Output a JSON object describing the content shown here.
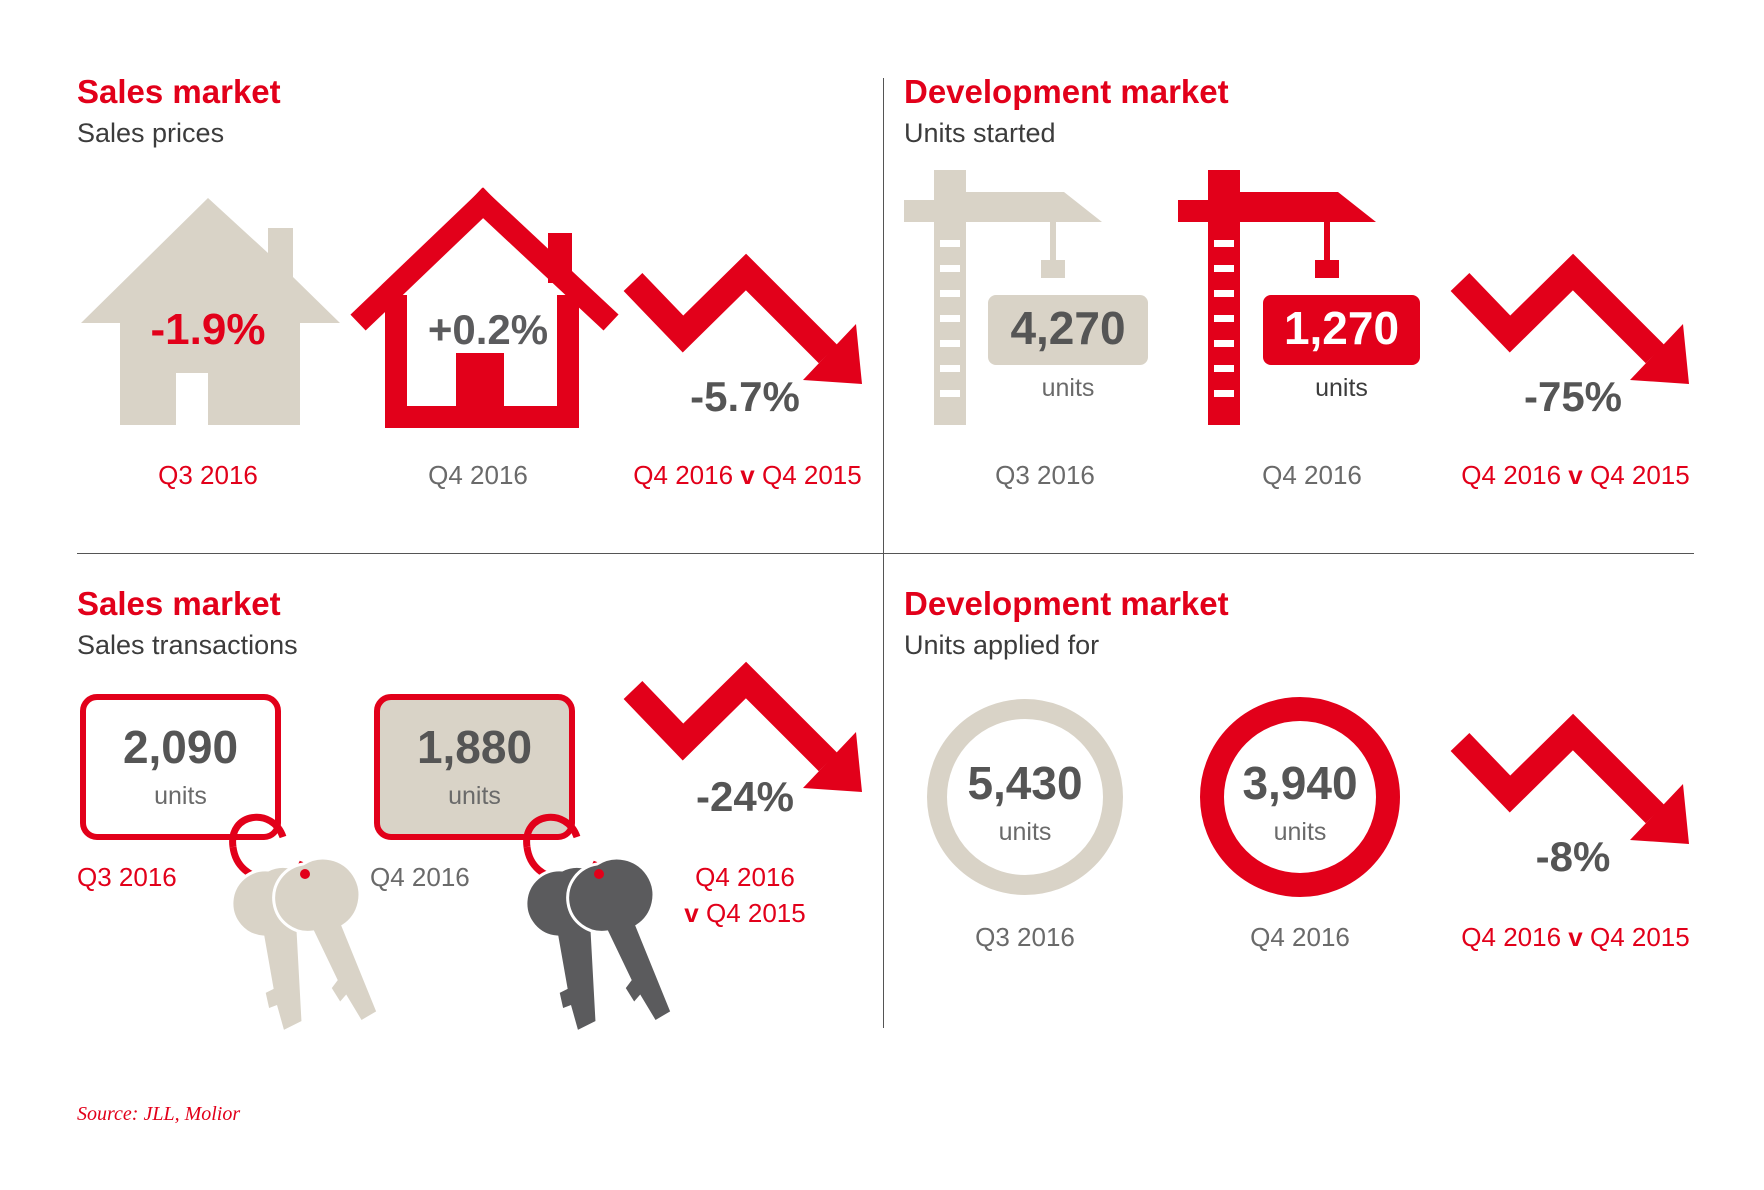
{
  "panels": {
    "sales_prices": {
      "title": "Sales market",
      "subtitle": "Sales prices",
      "q3": {
        "value": "-1.9%",
        "label": "Q3 2016"
      },
      "q4": {
        "value": "+0.2%",
        "label": "Q4 2016"
      },
      "change": {
        "value": "-5.7%",
        "label_a": "Q4 2016",
        "label_v": "v",
        "label_b": "Q4 2015"
      }
    },
    "units_started": {
      "title": "Development market",
      "subtitle": "Units started",
      "q3": {
        "value": "4,270",
        "unit": "units",
        "label": "Q3 2016"
      },
      "q4": {
        "value": "1,270",
        "unit": "units",
        "label": "Q4 2016"
      },
      "change": {
        "value": "-75%",
        "label_a": "Q4 2016",
        "label_v": "v",
        "label_b": "Q4 2015"
      }
    },
    "sales_transactions": {
      "title": "Sales market",
      "subtitle": "Sales transactions",
      "q3": {
        "value": "2,090",
        "unit": "units",
        "label": "Q3 2016"
      },
      "q4": {
        "value": "1,880",
        "unit": "units",
        "label": "Q4 2016"
      },
      "change": {
        "value": "-24%",
        "label_a": "Q4 2016",
        "label_v": "v",
        "label_b": "Q4 2015"
      }
    },
    "units_applied": {
      "title": "Development market",
      "subtitle": "Units applied for",
      "q3": {
        "value": "5,430",
        "unit": "units",
        "label": "Q3 2016"
      },
      "q4": {
        "value": "3,940",
        "unit": "units",
        "label": "Q4 2016"
      },
      "change": {
        "value": "-8%",
        "label_a": "Q4 2016",
        "label_v": "v",
        "label_b": "Q4 2015"
      }
    }
  },
  "source": "Source: JLL, Molior",
  "colors": {
    "red": "#e2001a",
    "beige": "#d9d3c7",
    "dark_grey": "#5b5b5d",
    "text_grey": "#6a6a6a"
  },
  "icons": [
    "house-icon",
    "crane-icon",
    "key-tag-icon",
    "ring-icon",
    "down-arrow-icon"
  ]
}
